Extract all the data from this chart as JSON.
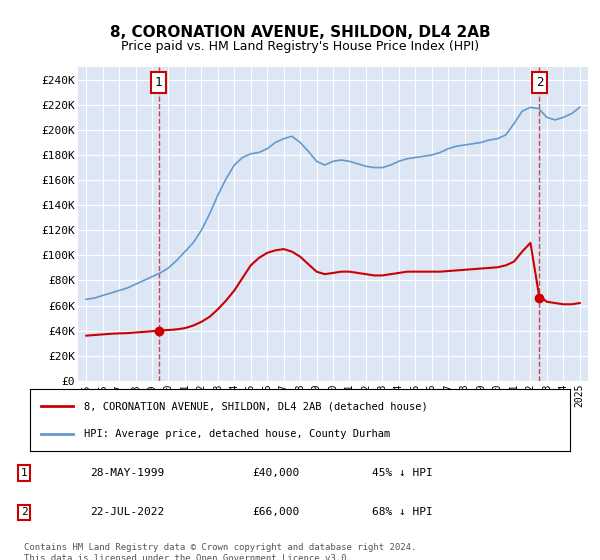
{
  "title": "8, CORONATION AVENUE, SHILDON, DL4 2AB",
  "subtitle": "Price paid vs. HM Land Registry's House Price Index (HPI)",
  "ylabel": "",
  "background_color": "#ffffff",
  "plot_bg_color": "#dce6f5",
  "grid_color": "#ffffff",
  "ylim": [
    0,
    250000
  ],
  "yticks": [
    0,
    20000,
    40000,
    60000,
    80000,
    100000,
    120000,
    140000,
    160000,
    180000,
    200000,
    220000,
    240000
  ],
  "sale1": {
    "date_num": 1999.4,
    "price": 40000,
    "label": "1",
    "x_label": "28-MAY-1999",
    "price_label": "£40,000",
    "pct_label": "45% ↓ HPI"
  },
  "sale2": {
    "date_num": 2022.55,
    "price": 66000,
    "label": "2",
    "x_label": "22-JUL-2022",
    "price_label": "£66,000",
    "pct_label": "68% ↓ HPI"
  },
  "legend_line1": "8, CORONATION AVENUE, SHILDON, DL4 2AB (detached house)",
  "legend_line2": "HPI: Average price, detached house, County Durham",
  "footer": "Contains HM Land Registry data © Crown copyright and database right 2024.\nThis data is licensed under the Open Government Licence v3.0.",
  "line_red": "#cc0000",
  "line_blue": "#6699cc",
  "marker_red": "#cc0000",
  "marker_blue": "#336699"
}
